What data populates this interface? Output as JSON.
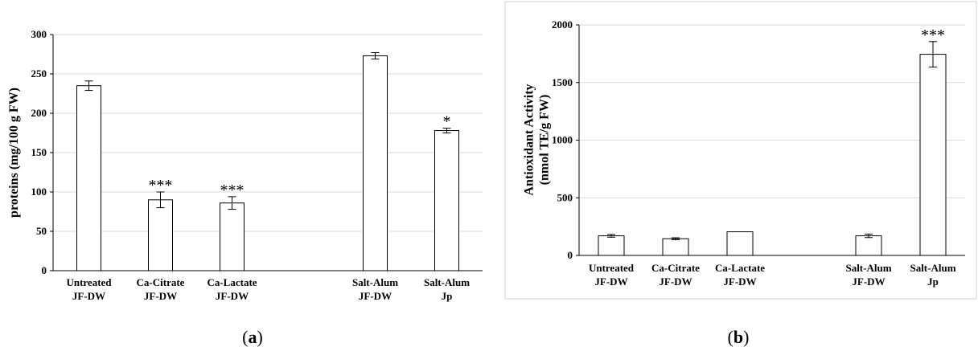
{
  "chart_data": [
    {
      "type": "bar",
      "panel_label": "a",
      "ylabel": "proteins (mg/100 g FW)",
      "ylim": [
        0,
        300
      ],
      "yticks": [
        0,
        50,
        100,
        150,
        200,
        250,
        300
      ],
      "grid": true,
      "categories": [
        [
          "Untreated",
          "JF-DW"
        ],
        [
          "Ca-Citrate",
          "JF-DW"
        ],
        [
          "Ca-Lactate",
          "JF-DW"
        ],
        [
          "",
          ""
        ],
        [
          "Salt-Alum",
          "JF-DW"
        ],
        [
          "Salt-Alum",
          "Jp"
        ]
      ],
      "values": [
        235,
        90,
        86,
        null,
        273,
        178
      ],
      "errors": [
        6,
        10,
        8,
        null,
        4,
        3
      ],
      "significance": [
        "",
        "***",
        "***",
        "",
        "",
        "*"
      ]
    },
    {
      "type": "bar",
      "panel_label": "b",
      "ylabel": [
        "Antioxidant Activity",
        "(nmol TE/g FW)"
      ],
      "ylim": [
        0,
        2000
      ],
      "yticks": [
        0,
        500,
        1000,
        1500,
        2000
      ],
      "grid": true,
      "categories": [
        [
          "Untreated",
          "JF-DW"
        ],
        [
          "Ca-Citrate",
          "JF-DW"
        ],
        [
          "Ca-Lactate",
          "JF-DW"
        ],
        [
          "",
          ""
        ],
        [
          "Salt-Alum",
          "JF-DW"
        ],
        [
          "Salt-Alum",
          "Jp"
        ]
      ],
      "values": [
        170,
        145,
        205,
        null,
        170,
        1745
      ],
      "errors": [
        12,
        8,
        0,
        null,
        15,
        110
      ],
      "significance": [
        "",
        "",
        "",
        "",
        "",
        "***"
      ]
    }
  ]
}
